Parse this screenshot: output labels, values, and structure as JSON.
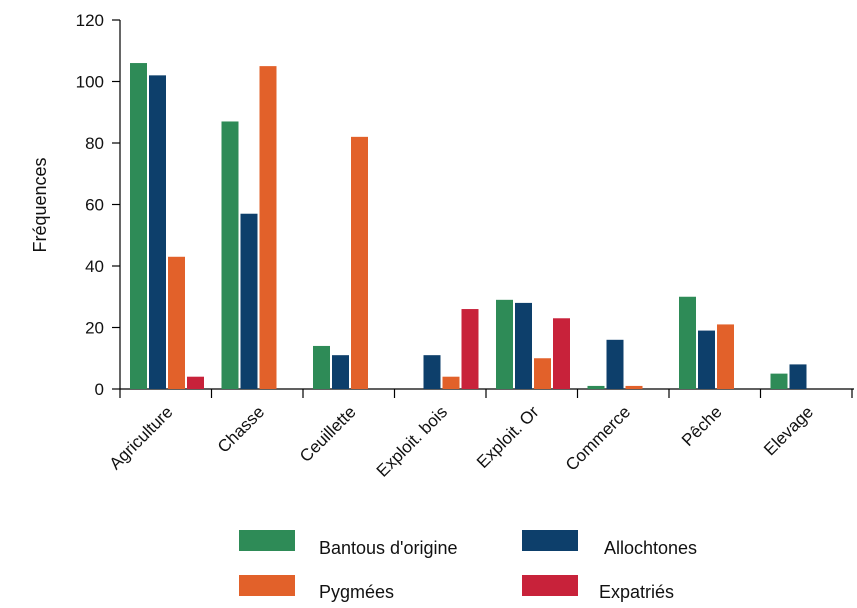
{
  "chart_data": {
    "type": "bar",
    "title": "",
    "xlabel": "",
    "ylabel": "Fréquences",
    "ylim": [
      0,
      120
    ],
    "yticks": [
      0,
      20,
      40,
      60,
      80,
      100,
      120
    ],
    "grid": false,
    "legend_position": "bottom",
    "categories": [
      "Agriculture",
      "Chasse",
      "Ceuillette",
      "Exploit. bois",
      "Exploit. Or",
      "Commerce",
      "Pêche",
      "Elevage"
    ],
    "series": [
      {
        "name": "Bantous d'origine",
        "color": "#2e8b57",
        "values": [
          106,
          87,
          14,
          0,
          29,
          1,
          30,
          5
        ]
      },
      {
        "name": "Allochtones",
        "color": "#0d3f6b",
        "values": [
          102,
          57,
          11,
          11,
          28,
          16,
          19,
          8
        ]
      },
      {
        "name": "Pygmées",
        "color": "#e2612a",
        "values": [
          43,
          105,
          82,
          4,
          10,
          1,
          21,
          0
        ]
      },
      {
        "name": "Expatriés",
        "color": "#c8223a",
        "values": [
          4,
          0,
          0,
          26,
          23,
          0,
          0,
          0
        ]
      }
    ]
  }
}
